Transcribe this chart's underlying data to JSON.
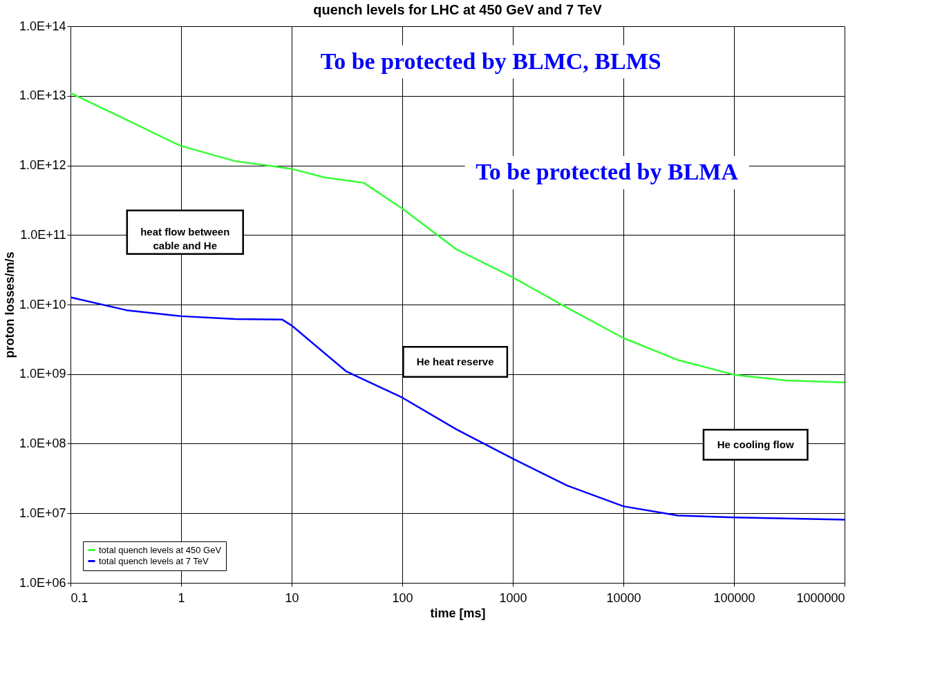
{
  "chart_data": {
    "type": "line",
    "title": "quench levels for LHC at 450 GeV and 7 TeV",
    "xlabel": "time [ms]",
    "ylabel": "proton losses/m/s",
    "log": "xy",
    "grid": true,
    "legend": "bottom left",
    "marker": "none",
    "line_style": "solid",
    "xlim": [
      0.1,
      1000000
    ],
    "xticks": [
      0.1,
      1,
      10,
      100,
      1000,
      10000,
      100000,
      1000000
    ],
    "ylim": [
      1000000,
      100000000000000
    ],
    "yticks": [
      {
        "value": 1000000,
        "label": "1.0E+06"
      },
      {
        "value": 10000000,
        "label": "1.0E+07"
      },
      {
        "value": 100000000,
        "label": "1.0E+08"
      },
      {
        "value": 1000000000,
        "label": "1.0E+09"
      },
      {
        "value": 10000000000,
        "label": "1.0E+10"
      },
      {
        "value": 100000000000,
        "label": "1.0E+11"
      },
      {
        "value": 1000000000000,
        "label": "1.0E+12"
      },
      {
        "value": 10000000000000,
        "label": "1.0E+13"
      },
      {
        "value": 100000000000000,
        "label": "1.0E+14"
      }
    ],
    "series": [
      {
        "name": "total quench levels at 450 GeV",
        "color": "#33ff33",
        "x": [
          0.1,
          1,
          3.1,
          10,
          20,
          45,
          100,
          310,
          980,
          3100,
          10000,
          31000,
          100000,
          300000,
          1000000
        ],
        "values": [
          11000000000000,
          1900000000000,
          1150000000000,
          890000000000,
          670000000000,
          560000000000,
          240000000000,
          62000000000,
          25000000000,
          9000000000,
          3300000000,
          1600000000,
          980000000,
          810000000,
          760000000
        ]
      },
      {
        "name": "total quench levels at 7 TeV",
        "color": "#0000ff",
        "x": [
          0.1,
          0.32,
          1,
          3.1,
          8.2,
          10,
          31,
          100,
          310,
          1000,
          3100,
          10000,
          31000,
          100000,
          1000000
        ],
        "values": [
          12700000000,
          8300000000,
          6800000000,
          6200000000,
          6100000000,
          5000000000,
          1100000000,
          460000000,
          160000000,
          61000000,
          25000000,
          12600000,
          9300000,
          8700000,
          8100000
        ]
      }
    ],
    "annotations": [
      "To be protected by BLMC, BLMS",
      "To be protected by BLMA",
      "heat flow between cable and He",
      "He heat reserve",
      "He cooling flow"
    ]
  }
}
